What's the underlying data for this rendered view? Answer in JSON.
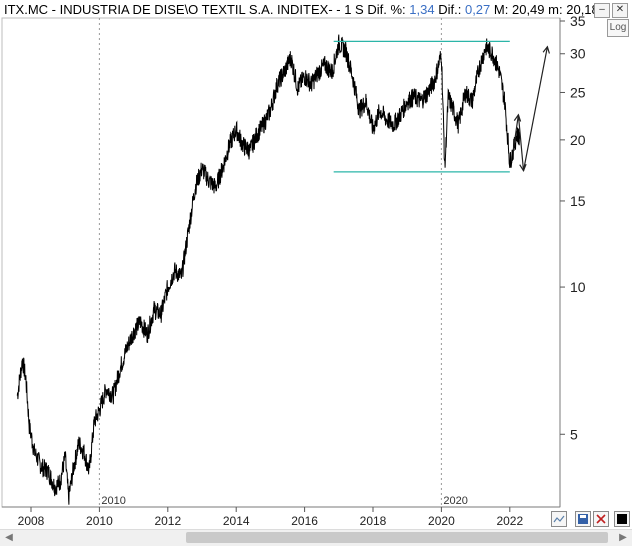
{
  "header": {
    "prefix": "ITX.MC - INDUSTRIA DE DISE\\O TEXTIL S.A. INDITEX- -  1 S",
    "dif_pct_label": "Dif. %:",
    "dif_pct_value": "1,34",
    "dif_label": "Dif.:",
    "dif_value": "0,27",
    "max_label": "M:",
    "max_value": "20,49",
    "min_label": "m:",
    "min_value": "20,18"
  },
  "log_button": "Log",
  "chart_data": {
    "type": "line",
    "y_scale": "log",
    "ylim": [
      3.55,
      35.5
    ],
    "y_ticks": [
      5,
      10,
      15,
      20,
      25,
      30,
      35
    ],
    "x_ticks": [
      "2008",
      "2010",
      "2012",
      "2014",
      "2016",
      "2018",
      "2020",
      "2022"
    ],
    "x_markers": [
      "2010",
      "2020"
    ],
    "series": [
      {
        "x": [
          2007.6,
          2007.75,
          2007.85,
          2007.95,
          2008.1,
          2008.3,
          2008.5,
          2008.7,
          2008.85,
          2009.0,
          2009.1,
          2009.25,
          2009.4,
          2009.55,
          2009.7,
          2009.85,
          2010.0,
          2010.2,
          2010.4,
          2010.6,
          2010.8,
          2011.0,
          2011.2,
          2011.4,
          2011.6,
          2011.8,
          2012.0,
          2012.2,
          2012.4,
          2012.6,
          2012.8,
          2013.0,
          2013.2,
          2013.4,
          2013.6,
          2013.8,
          2014.0,
          2014.2,
          2014.4,
          2014.6,
          2014.8,
          2015.0,
          2015.2,
          2015.4,
          2015.6,
          2015.8,
          2016.0,
          2016.2,
          2016.4,
          2016.6,
          2016.8,
          2017.0,
          2017.2,
          2017.4,
          2017.6,
          2017.8,
          2018.0,
          2018.2,
          2018.4,
          2018.6,
          2018.8,
          2019.0,
          2019.2,
          2019.4,
          2019.6,
          2019.8,
          2020.0,
          2020.1,
          2020.2,
          2020.35,
          2020.5,
          2020.7,
          2020.9,
          2021.1,
          2021.3,
          2021.5,
          2021.7,
          2021.85,
          2022.0,
          2022.1,
          2022.2,
          2022.3
        ],
        "y": [
          6.0,
          7.1,
          6.5,
          5.2,
          4.6,
          4.3,
          4.2,
          3.9,
          4.0,
          4.5,
          3.7,
          4.3,
          4.8,
          4.6,
          4.2,
          5.3,
          5.6,
          6.2,
          6.0,
          6.8,
          7.5,
          8.1,
          8.5,
          8.0,
          9.0,
          8.8,
          10.0,
          10.8,
          10.5,
          13.0,
          16.0,
          17.5,
          16.5,
          16.0,
          17.5,
          19.5,
          21.0,
          19.5,
          19.0,
          20.5,
          21.5,
          23.0,
          26.0,
          27.5,
          29.5,
          25.5,
          27.0,
          26.0,
          27.5,
          28.5,
          27.5,
          31.5,
          30.5,
          27.0,
          23.0,
          24.0,
          21.0,
          23.0,
          22.0,
          21.5,
          22.5,
          24.0,
          24.5,
          24.0,
          25.0,
          26.5,
          30.0,
          17.5,
          24.5,
          23.0,
          21.5,
          25.0,
          24.0,
          28.0,
          31.0,
          30.0,
          27.5,
          24.0,
          18.0,
          19.0,
          20.5,
          20.3
        ]
      }
    ],
    "annotations": {
      "resistance": 31.8,
      "support": 17.2,
      "projection": [
        [
          2022.1,
          19.0
        ],
        [
          2022.25,
          22.5
        ],
        [
          2022.4,
          17.3
        ],
        [
          2023.1,
          31.0
        ]
      ]
    }
  },
  "colors": {
    "price_line": "#000000",
    "channel": "#2bb5a8",
    "marker": "#9a9a9a",
    "projection": "#222222"
  }
}
